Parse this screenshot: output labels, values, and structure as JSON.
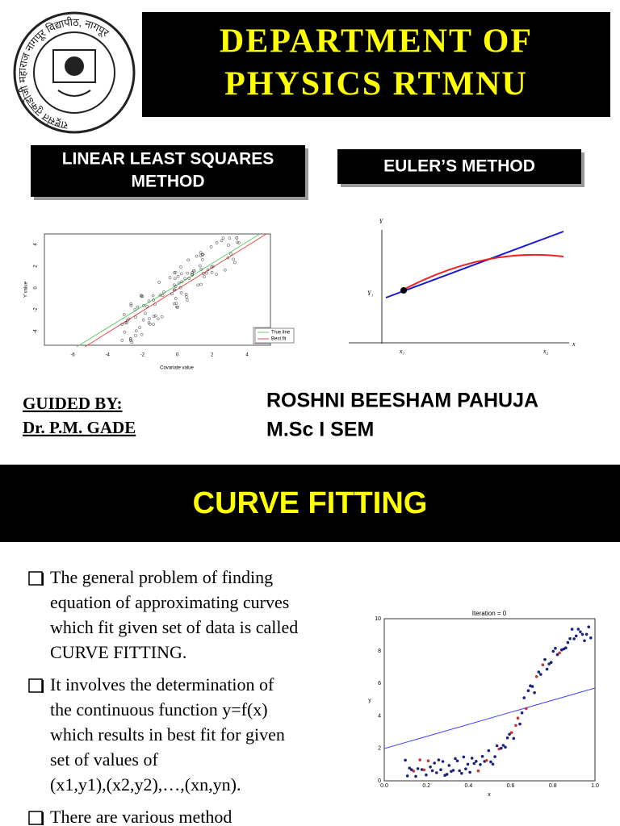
{
  "header": {
    "title_lines": [
      "DEPARTMENT OF",
      "PHYSICS RTMNU"
    ],
    "logo_text": "राष्ट्रसंत तुकडोजी महाराज नागपूर विद्यापीठ, नागपूर"
  },
  "methods": [
    "LINEAR  LEAST  SQUARES",
    "METHOD",
    "EULER’S METHOD"
  ],
  "least_squares_figure": {
    "xticks": [
      "-6",
      "-4",
      "-2",
      "0",
      "2",
      "4"
    ],
    "yticks": [
      "4",
      "2",
      "0",
      "-2",
      "-4"
    ],
    "xlabel": "Covariate value",
    "ylabel": "Y value",
    "legend": [
      "True line",
      "Best fit"
    ]
  },
  "euler_figure": {
    "labels": [
      "Y",
      "Y₁",
      "x₁",
      "x₂",
      "x"
    ]
  },
  "guide": {
    "heading": "GUIDED BY:",
    "name": "Dr. P.M. GADE"
  },
  "student": {
    "name": "ROSHNI BEESHAM PAHUJA",
    "course": "M.Sc I SEM"
  },
  "section_title": "CURVE FITTING",
  "bullets": [
    {
      "lines": [
        "The general problem of  finding",
        "equation of  approximating curves",
        "which fit given set of  data is called",
        "CURVE FITTING."
      ]
    },
    {
      "lines": [
        "It involves the determination of",
        "the continuous function  y=f(x)",
        "which results in best fit for given",
        "set of  values of",
        "(x1,y1),(x2,y2),…,(xn,yn)."
      ]
    },
    {
      "lines": [
        "There are various method"
      ]
    }
  ],
  "iteration_figure": {
    "title": "Iteration = 0",
    "xticks": [
      "0.0",
      "0.2",
      "0.4",
      "0.6",
      "0.8",
      "1.0"
    ],
    "yticks": [
      "0",
      "2",
      "4",
      "6",
      "8",
      "10"
    ],
    "xlabel": "x",
    "ylabel": "y"
  }
}
